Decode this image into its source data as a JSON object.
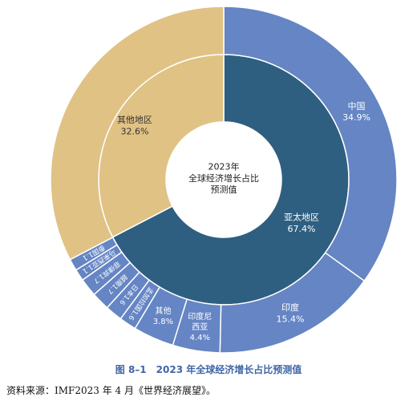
{
  "chart_data": {
    "type": "pie",
    "subtype": "nested-donut",
    "title": "图 8–1　2023 年全球经济增长占比预测值",
    "center_label": [
      "2023年",
      "全球经济增长占比",
      "预测值"
    ],
    "inner": [
      {
        "label": "亚太地区",
        "value": 67.4,
        "display": "67.4%",
        "color": "#2e5f80"
      },
      {
        "label": "其他地区",
        "value": 32.6,
        "display": "32.6%",
        "color": "#e0c285"
      }
    ],
    "outer": [
      {
        "label": "中国",
        "value": 34.9,
        "display": "34.9%",
        "color": "#6585c4"
      },
      {
        "label": "印度",
        "value": 15.4,
        "display": "15.4%",
        "color": "#6585c4"
      },
      {
        "label": "印度尼西亚",
        "value": 4.4,
        "display": "4.4%",
        "color": "#6585c4"
      },
      {
        "label": "其他",
        "value": 3.8,
        "display": "3.8%",
        "color": "#6585c4"
      },
      {
        "label": "孟加拉国",
        "value": 1.6,
        "display": "1.6%",
        "color": "#6585c4"
      },
      {
        "label": "日本",
        "value": 1.6,
        "display": "1.6%",
        "color": "#6585c4"
      },
      {
        "label": "越南",
        "value": 1.7,
        "display": "1.7%",
        "color": "#6585c4"
      },
      {
        "label": "菲律宾",
        "value": 1.7,
        "display": "1.7%",
        "color": "#6585c4"
      },
      {
        "label": "马来西亚",
        "value": 1.1,
        "display": "1.1%",
        "color": "#6585c4"
      },
      {
        "label": "泰国",
        "value": 1.1,
        "display": "1.1%",
        "color": "#6585c4"
      },
      {
        "label": "其他地区",
        "value": 32.6,
        "display": "",
        "color": "#e0c285"
      }
    ]
  },
  "caption": "图 8–1　2023 年全球经济增长占比预测值",
  "source": "资料来源：IMF2023 年 4 月《世界经济展望》。"
}
